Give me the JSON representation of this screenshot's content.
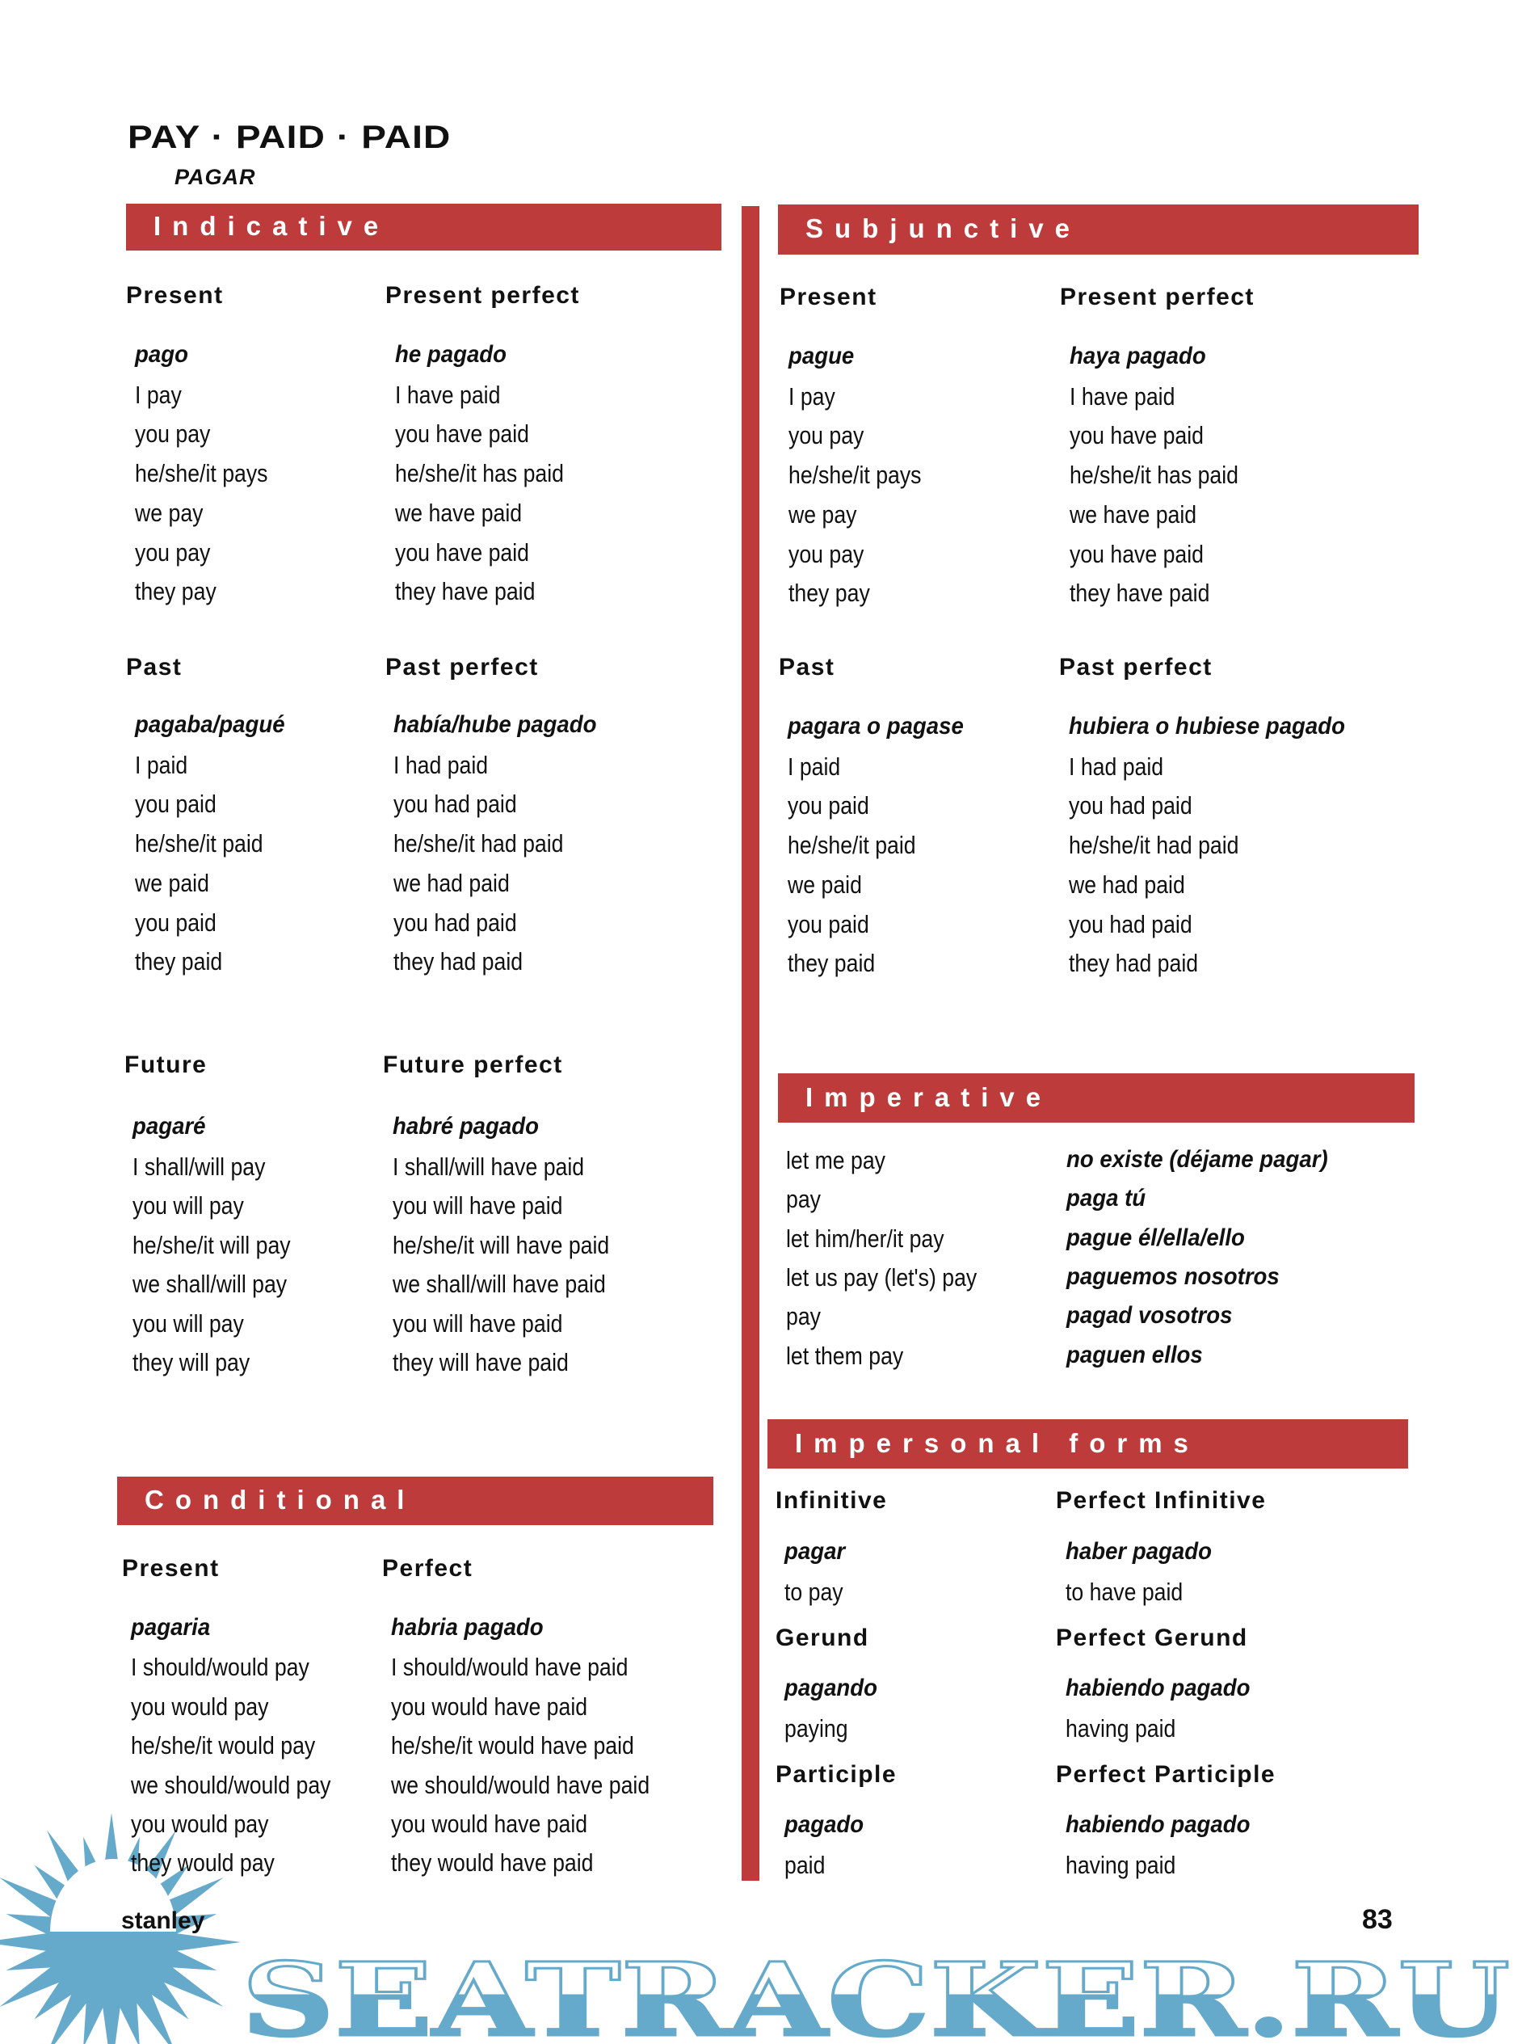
{
  "header": {
    "title": "PAY · PAID · PAID",
    "subtitle": "PAGAR"
  },
  "colors": {
    "accent": "#bd3b3b",
    "watermark": "#65a9cb"
  },
  "indicative": {
    "label": "Indicative",
    "groups": [
      {
        "heading": "Present",
        "spanish": "pago",
        "rows": [
          "I pay",
          "you pay",
          "he/she/it pays",
          "we pay",
          "you pay",
          "they pay"
        ]
      },
      {
        "heading": "Present perfect",
        "spanish": "he pagado",
        "rows": [
          "I have paid",
          "you have paid",
          "he/she/it has paid",
          "we have paid",
          "you have paid",
          "they have paid"
        ]
      },
      {
        "heading": "Past",
        "spanish": "pagaba/pagué",
        "rows": [
          "I paid",
          "you paid",
          "he/she/it paid",
          "we paid",
          "you paid",
          "they paid"
        ]
      },
      {
        "heading": "Past perfect",
        "spanish": "había/hube pagado",
        "rows": [
          "I had paid",
          "you had paid",
          "he/she/it had paid",
          "we had paid",
          "you had paid",
          "they had paid"
        ]
      },
      {
        "heading": "Future",
        "spanish": "pagaré",
        "rows": [
          "I shall/will pay",
          "you will pay",
          "he/she/it will pay",
          "we shall/will pay",
          "you will pay",
          "they will pay"
        ]
      },
      {
        "heading": "Future perfect",
        "spanish": "habré pagado",
        "rows": [
          "I shall/will have paid",
          "you will have paid",
          "he/she/it will have paid",
          "we shall/will have paid",
          "you will have paid",
          "they will have paid"
        ]
      }
    ]
  },
  "conditional": {
    "label": "Conditional",
    "groups": [
      {
        "heading": "Present",
        "spanish": "pagaria",
        "rows": [
          "I should/would pay",
          "you would pay",
          "he/she/it would pay",
          "we should/would pay",
          "you would pay",
          "they would pay"
        ]
      },
      {
        "heading": "Perfect",
        "spanish": "habria pagado",
        "rows": [
          "I should/would have paid",
          "you would have paid",
          "he/she/it would have paid",
          "we should/would have paid",
          "you would have paid",
          "they would have paid"
        ]
      }
    ]
  },
  "subjunctive": {
    "label": "Subjunctive",
    "groups": [
      {
        "heading": "Present",
        "spanish": "pague",
        "rows": [
          "I pay",
          "you pay",
          "he/she/it pays",
          "we pay",
          "you pay",
          "they pay"
        ]
      },
      {
        "heading": "Present perfect",
        "spanish": "haya pagado",
        "rows": [
          "I have paid",
          "you have paid",
          "he/she/it has paid",
          "we have paid",
          "you have paid",
          "they have paid"
        ]
      },
      {
        "heading": "Past",
        "spanish": "pagara o pagase",
        "rows": [
          "I paid",
          "you paid",
          "he/she/it paid",
          "we paid",
          "you paid",
          "they paid"
        ]
      },
      {
        "heading": "Past perfect",
        "spanish": "hubiera o hubiese pagado",
        "rows": [
          "I had paid",
          "you had paid",
          "he/she/it had paid",
          "we had paid",
          "you had paid",
          "they had paid"
        ]
      }
    ]
  },
  "imperative": {
    "label": "Imperative",
    "english": [
      "let me pay",
      "pay",
      "let him/her/it pay",
      "let us pay (let's) pay",
      "pay",
      "let them pay"
    ],
    "spanish": [
      "no existe (déjame pagar)",
      "paga tú",
      "pague él/ella/ello",
      "paguemos nosotros",
      "pagad vosotros",
      "paguen ellos"
    ]
  },
  "impersonal": {
    "label": "Impersonal forms",
    "items": [
      {
        "heading": "Infinitive",
        "spanish": "pagar",
        "english": "to pay"
      },
      {
        "heading": "Perfect Infinitive",
        "spanish": "haber pagado",
        "english": "to have paid"
      },
      {
        "heading": "Gerund",
        "spanish": "pagando",
        "english": "paying"
      },
      {
        "heading": "Perfect Gerund",
        "spanish": "habiendo pagado",
        "english": "having paid"
      },
      {
        "heading": "Participle",
        "spanish": "pagado",
        "english": "paid"
      },
      {
        "heading": "Perfect Participle",
        "spanish": "habiendo pagado",
        "english": "having paid"
      }
    ]
  },
  "footer": {
    "publisher": "stanley",
    "page_number": "83"
  },
  "watermark": {
    "text": "SEATRACKER.RU"
  }
}
